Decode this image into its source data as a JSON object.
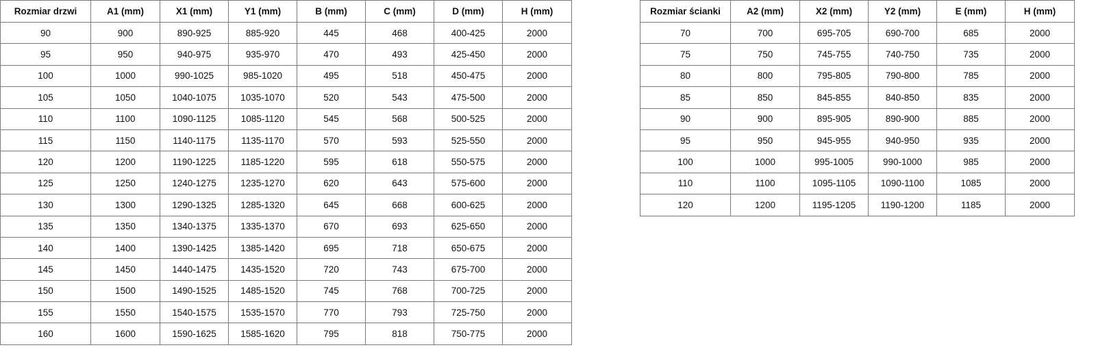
{
  "doors_table": {
    "headers": [
      "Rozmiar drzwi",
      "A1 (mm)",
      "X1 (mm)",
      "Y1 (mm)",
      "B (mm)",
      "C (mm)",
      "D (mm)",
      "H (mm)"
    ],
    "rows": [
      [
        "90",
        "900",
        "890-925",
        "885-920",
        "445",
        "468",
        "400-425",
        "2000"
      ],
      [
        "95",
        "950",
        "940-975",
        "935-970",
        "470",
        "493",
        "425-450",
        "2000"
      ],
      [
        "100",
        "1000",
        "990-1025",
        "985-1020",
        "495",
        "518",
        "450-475",
        "2000"
      ],
      [
        "105",
        "1050",
        "1040-1075",
        "1035-1070",
        "520",
        "543",
        "475-500",
        "2000"
      ],
      [
        "110",
        "1100",
        "1090-1125",
        "1085-1120",
        "545",
        "568",
        "500-525",
        "2000"
      ],
      [
        "115",
        "1150",
        "1140-1175",
        "1135-1170",
        "570",
        "593",
        "525-550",
        "2000"
      ],
      [
        "120",
        "1200",
        "1190-1225",
        "1185-1220",
        "595",
        "618",
        "550-575",
        "2000"
      ],
      [
        "125",
        "1250",
        "1240-1275",
        "1235-1270",
        "620",
        "643",
        "575-600",
        "2000"
      ],
      [
        "130",
        "1300",
        "1290-1325",
        "1285-1320",
        "645",
        "668",
        "600-625",
        "2000"
      ],
      [
        "135",
        "1350",
        "1340-1375",
        "1335-1370",
        "670",
        "693",
        "625-650",
        "2000"
      ],
      [
        "140",
        "1400",
        "1390-1425",
        "1385-1420",
        "695",
        "718",
        "650-675",
        "2000"
      ],
      [
        "145",
        "1450",
        "1440-1475",
        "1435-1520",
        "720",
        "743",
        "675-700",
        "2000"
      ],
      [
        "150",
        "1500",
        "1490-1525",
        "1485-1520",
        "745",
        "768",
        "700-725",
        "2000"
      ],
      [
        "155",
        "1550",
        "1540-1575",
        "1535-1570",
        "770",
        "793",
        "725-750",
        "2000"
      ],
      [
        "160",
        "1600",
        "1590-1625",
        "1585-1620",
        "795",
        "818",
        "750-775",
        "2000"
      ]
    ]
  },
  "wall_table": {
    "headers": [
      "Rozmiar ścianki",
      "A2 (mm)",
      "X2 (mm)",
      "Y2 (mm)",
      "E (mm)",
      "H (mm)"
    ],
    "rows": [
      [
        "70",
        "700",
        "695-705",
        "690-700",
        "685",
        "2000"
      ],
      [
        "75",
        "750",
        "745-755",
        "740-750",
        "735",
        "2000"
      ],
      [
        "80",
        "800",
        "795-805",
        "790-800",
        "785",
        "2000"
      ],
      [
        "85",
        "850",
        "845-855",
        "840-850",
        "835",
        "2000"
      ],
      [
        "90",
        "900",
        "895-905",
        "890-900",
        "885",
        "2000"
      ],
      [
        "95",
        "950",
        "945-955",
        "940-950",
        "935",
        "2000"
      ],
      [
        "100",
        "1000",
        "995-1005",
        "990-1000",
        "985",
        "2000"
      ],
      [
        "110",
        "1100",
        "1095-1105",
        "1090-1100",
        "1085",
        "2000"
      ],
      [
        "120",
        "1200",
        "1195-1205",
        "1190-1200",
        "1185",
        "2000"
      ]
    ]
  }
}
